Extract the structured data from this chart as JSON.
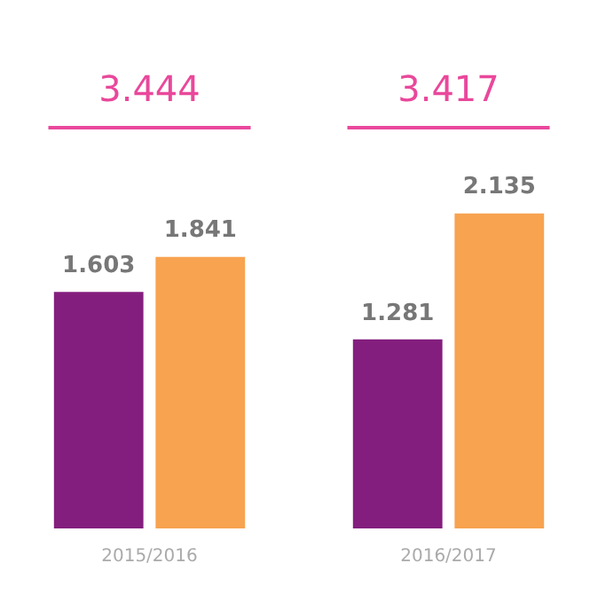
{
  "chart_data": {
    "type": "bar",
    "categories": [
      "2015/2016",
      "2016/2017"
    ],
    "series": [
      {
        "color": "#841e7e",
        "values": [
          1.603,
          1.281
        ]
      },
      {
        "color": "#f7a350",
        "values": [
          1.841,
          2.135
        ]
      }
    ],
    "tick_labels": "x",
    "grid": false,
    "legend": false,
    "data_labels": true,
    "annotations": [
      "3.444",
      "3.417"
    ]
  }
}
